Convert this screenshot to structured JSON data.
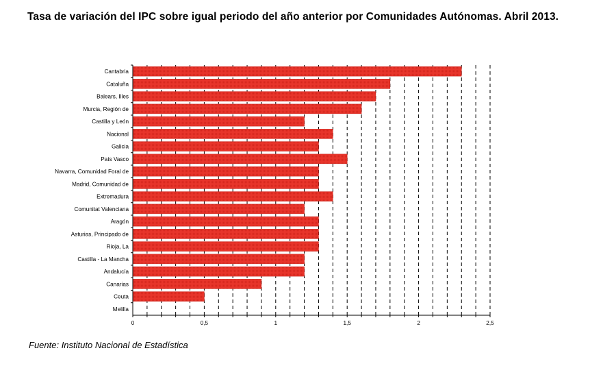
{
  "title": "Tasa de variación del IPC sobre igual periodo del año anterior por Comunidades Autónomas. Abril 2013.",
  "source": "Fuente: Instituto Nacional de Estadística",
  "chart_data": {
    "type": "bar",
    "orientation": "horizontal",
    "categories": [
      "Cantabria",
      "Cataluña",
      "Balears, Illes",
      "Murcia, Región de",
      "Castilla y León",
      "Nacional",
      "Galicia",
      "País Vasco",
      "Navarra, Comunidad Foral de",
      "Madrid, Comunidad de",
      "Extremadura",
      "Comunitat Valenciana",
      "Aragón",
      "Asturias, Principado de",
      "Rioja, La",
      "Castilla - La Mancha",
      "Andalucía",
      "Canarias",
      "Ceuta",
      "Melilla"
    ],
    "values": [
      2.3,
      1.8,
      1.7,
      1.6,
      1.2,
      1.4,
      1.3,
      1.5,
      1.3,
      1.3,
      1.4,
      1.2,
      1.3,
      1.3,
      1.3,
      1.2,
      1.2,
      0.9,
      0.5,
      0
    ],
    "xlim": [
      0,
      2.5
    ],
    "xticks": [
      0,
      0.5,
      1,
      1.5,
      2,
      2.5
    ],
    "xtick_labels": [
      "0",
      "0,5",
      "1",
      "1,5",
      "2",
      "2,5"
    ],
    "grid": "vertical dashed",
    "bar_color": "#e8352b"
  }
}
